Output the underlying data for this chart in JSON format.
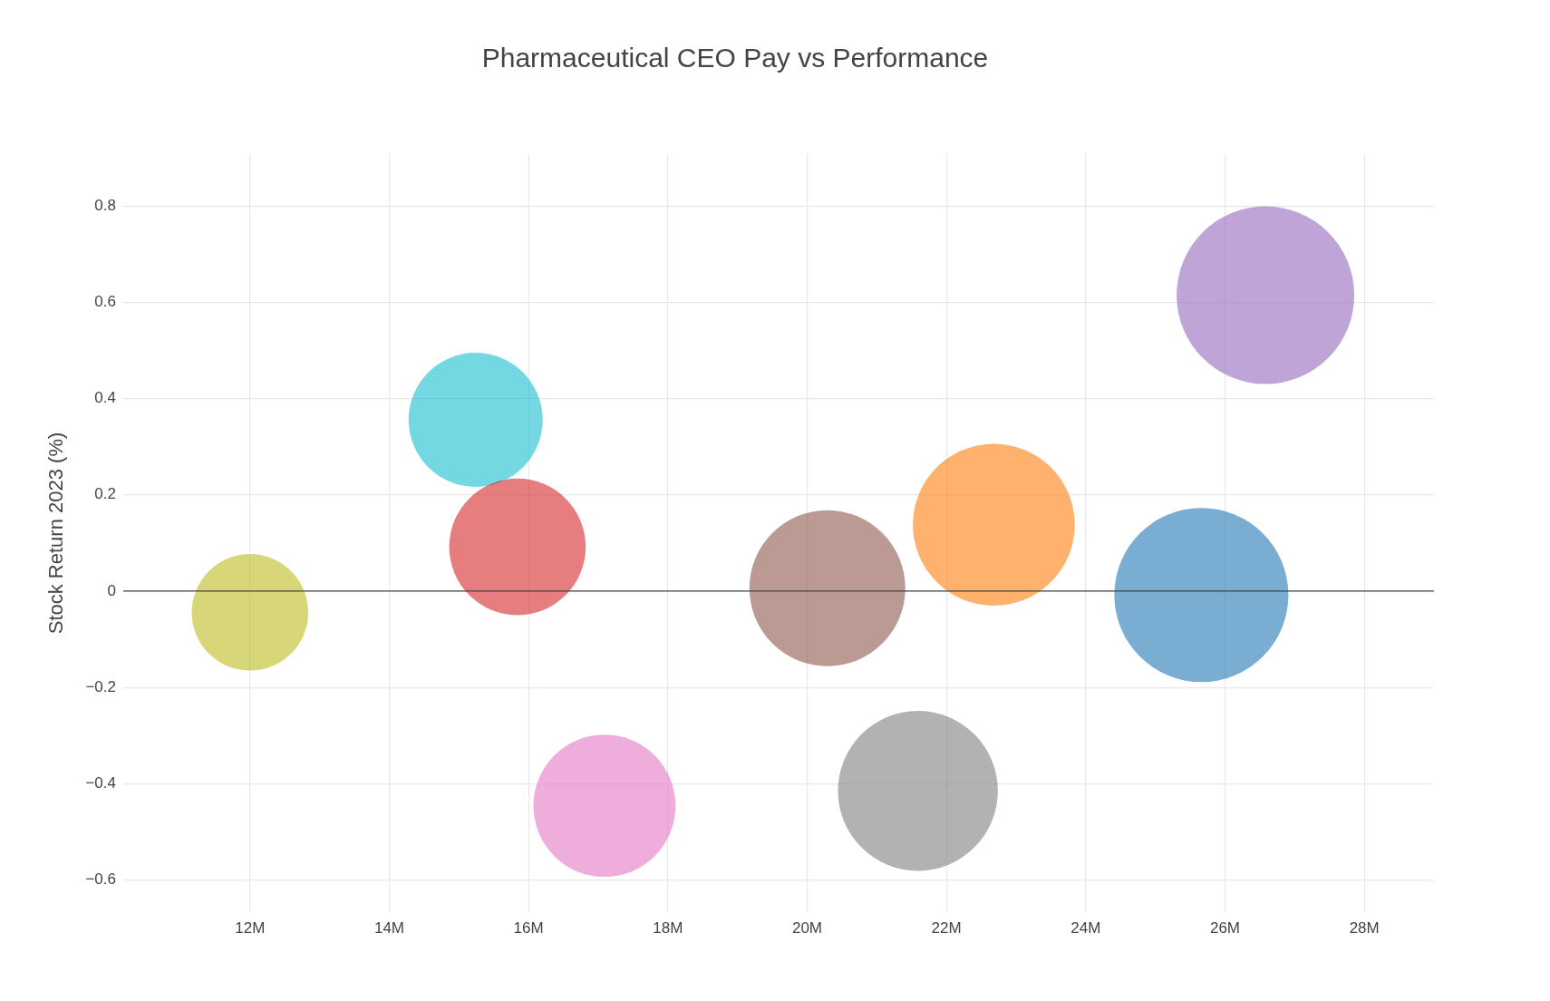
{
  "chart_data": {
    "type": "bubble",
    "title": "Pharmaceutical CEO Pay vs Performance",
    "ylabel": "Stock Return 2023 (%)",
    "x": [
      12000000,
      15240000,
      15840000,
      17090000,
      20290000,
      21590000,
      22680000,
      25660000,
      26580000
    ],
    "values": [
      -0.044,
      0.356,
      0.092,
      -0.446,
      0.006,
      -0.415,
      0.138,
      -0.008,
      0.615
    ],
    "sizes": [
      0.43,
      0.57,
      0.59,
      0.64,
      0.77,
      0.81,
      0.83,
      0.96,
      1
    ],
    "colors": [
      "#bcbd22",
      "#17becf",
      "#d62728",
      "#e377c2",
      "#8c564b",
      "#7f7f7f",
      "#ff7f0e",
      "#1f77b4",
      "#9467bd"
    ],
    "xlim": [
      10180000,
      29000000
    ],
    "xticks": [
      {
        "value": 12000000,
        "label": "12M"
      },
      {
        "value": 14000000,
        "label": "14M"
      },
      {
        "value": 16000000,
        "label": "16M"
      },
      {
        "value": 18000000,
        "label": "18M"
      },
      {
        "value": 20000000,
        "label": "20M"
      },
      {
        "value": 22000000,
        "label": "22M"
      },
      {
        "value": 24000000,
        "label": "24M"
      },
      {
        "value": 26000000,
        "label": "26M"
      },
      {
        "value": 28000000,
        "label": "28M"
      }
    ],
    "ylim": [
      -0.667,
      0.908
    ],
    "yticks": [
      {
        "value": -0.6,
        "label": "−0.6"
      },
      {
        "value": -0.4,
        "label": "−0.4"
      },
      {
        "value": -0.2,
        "label": "−0.2"
      },
      0,
      0.2,
      0.4,
      0.6,
      0.8
    ],
    "ref_lines": [
      {
        "axis": "y",
        "value": 0,
        "color": "#444444"
      }
    ],
    "grid": true,
    "legend": false
  }
}
